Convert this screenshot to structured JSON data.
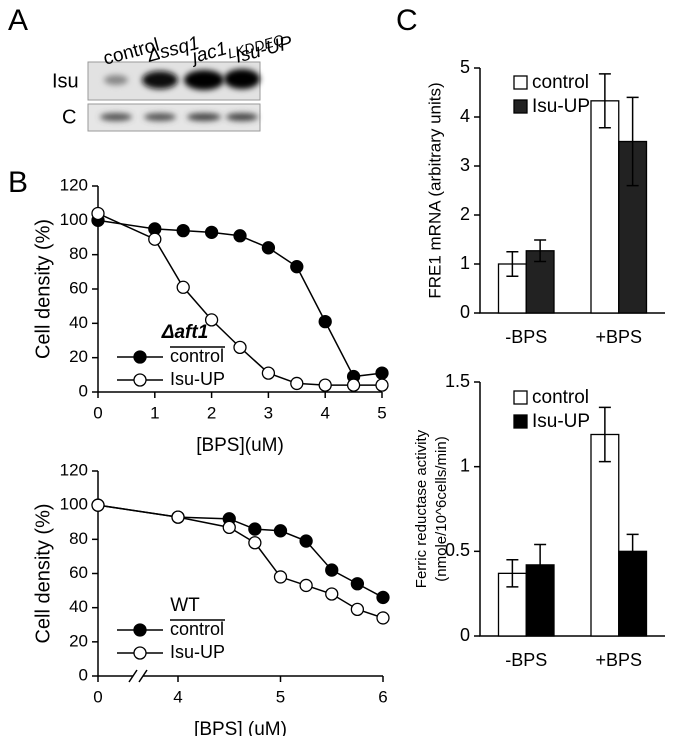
{
  "panel_a": {
    "label": "A",
    "lanes": [
      {
        "text": "control"
      },
      {
        "text": "Δssq1"
      },
      {
        "text": "jac1",
        "sub": "LKDDEQ"
      },
      {
        "text": "Isu-UP"
      }
    ],
    "rows": [
      "Isu",
      "C"
    ]
  },
  "chart_data": [
    {
      "type": "line",
      "panel": "B",
      "xlabel": "[BPS](uM)",
      "ylabel": "Cell density (%)",
      "legend_title": "Δaft1",
      "xlim": [
        0,
        5
      ],
      "xticks": [
        0,
        1,
        2,
        3,
        4,
        5
      ],
      "ylim": [
        0,
        120
      ],
      "yticks": [
        0,
        20,
        40,
        60,
        80,
        100,
        120
      ],
      "x": [
        0,
        1,
        1.5,
        2,
        2.5,
        3,
        3.5,
        4,
        4.5,
        5
      ],
      "series": [
        {
          "name": "control",
          "color": "#000000",
          "values": [
            100,
            95,
            94,
            93,
            91,
            84,
            73,
            41,
            9,
            11
          ]
        },
        {
          "name": "Isu-UP",
          "color": "#ffffff",
          "values": [
            104,
            89,
            61,
            42,
            26,
            11,
            5,
            4,
            4,
            4
          ]
        }
      ]
    },
    {
      "type": "line",
      "xlabel": "[BPS] (uM)",
      "ylabel": "Cell density (%)",
      "legend_title": "WT",
      "xlim": [
        0,
        6
      ],
      "xbreak": [
        0,
        4
      ],
      "xticks": [
        0,
        4,
        5,
        6
      ],
      "ylim": [
        0,
        120
      ],
      "yticks": [
        0,
        20,
        40,
        60,
        80,
        100,
        120
      ],
      "x": [
        0,
        4,
        4.5,
        4.75,
        5,
        5.25,
        5.5,
        5.75,
        6
      ],
      "series": [
        {
          "name": "control",
          "color": "#000000",
          "values": [
            100,
            93,
            92,
            86,
            85,
            79,
            62,
            54,
            46
          ]
        },
        {
          "name": "Isu-UP",
          "color": "#ffffff",
          "values": [
            100,
            93,
            87,
            78,
            58,
            53,
            48,
            39,
            34
          ]
        }
      ]
    },
    {
      "type": "bar",
      "panel": "C",
      "ylabel": [
        "FRE1 mRNA (arbitrary units)"
      ],
      "categories": [
        "-BPS",
        "+BPS"
      ],
      "ylim": [
        0,
        5
      ],
      "yticks": [
        0,
        1,
        2,
        3,
        4,
        5
      ],
      "series": [
        {
          "name": "control",
          "color": "#ffffff",
          "values": [
            1.0,
            4.33
          ],
          "errors": [
            0.25,
            0.55
          ]
        },
        {
          "name": "Isu-UP",
          "color": "#222222",
          "values": [
            1.27,
            3.5
          ],
          "errors": [
            0.22,
            0.9
          ]
        }
      ]
    },
    {
      "type": "bar",
      "ylabel": [
        "Ferric reductase activity",
        "(nmole/10^6cells/min)"
      ],
      "categories": [
        "-BPS",
        "+BPS"
      ],
      "ylim": [
        0,
        1.5
      ],
      "yticks": [
        0,
        0.5,
        1,
        1.5
      ],
      "series": [
        {
          "name": "control",
          "color": "#ffffff",
          "values": [
            0.37,
            1.19
          ],
          "errors": [
            0.08,
            0.16
          ]
        },
        {
          "name": "Isu-UP",
          "color": "#000000",
          "values": [
            0.42,
            0.5
          ],
          "errors": [
            0.12,
            0.1
          ]
        }
      ]
    }
  ]
}
